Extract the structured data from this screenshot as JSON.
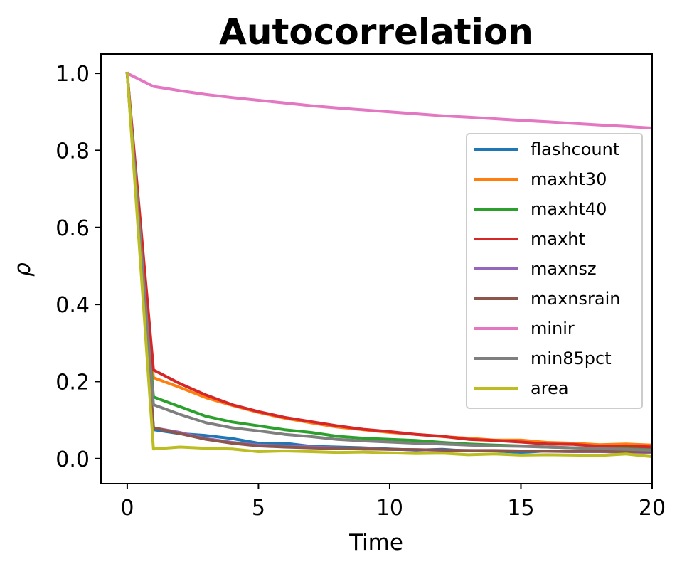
{
  "chart_data": {
    "type": "line",
    "title": "Autocorrelation",
    "xlabel": "Time",
    "ylabel": "ρ",
    "xlim": [
      -1,
      20
    ],
    "ylim": [
      -0.065,
      1.05
    ],
    "xticks": [
      0,
      5,
      10,
      15,
      20
    ],
    "xtick_labels": [
      "0",
      "5",
      "10",
      "15",
      "20"
    ],
    "yticks": [
      0.0,
      0.2,
      0.4,
      0.6,
      0.8,
      1.0
    ],
    "ytick_labels": [
      "0.0",
      "0.2",
      "0.4",
      "0.6",
      "0.8",
      "1.0"
    ],
    "grid": false,
    "legend_position": "center-right",
    "x": [
      0,
      1,
      2,
      3,
      4,
      5,
      6,
      7,
      8,
      9,
      10,
      11,
      12,
      13,
      14,
      15,
      16,
      17,
      18,
      19,
      20
    ],
    "series": [
      {
        "name": "flashcount",
        "color": "#1f77b4",
        "values": [
          1.0,
          0.075,
          0.065,
          0.06,
          0.052,
          0.04,
          0.04,
          0.032,
          0.03,
          0.028,
          0.025,
          0.022,
          0.024,
          0.02,
          0.02,
          0.016,
          0.02,
          0.018,
          0.018,
          0.02,
          0.015
        ]
      },
      {
        "name": "maxht30",
        "color": "#ff7f0e",
        "values": [
          1.0,
          0.21,
          0.185,
          0.158,
          0.138,
          0.12,
          0.105,
          0.093,
          0.082,
          0.075,
          0.068,
          0.063,
          0.057,
          0.053,
          0.048,
          0.048,
          0.042,
          0.04,
          0.036,
          0.038,
          0.035
        ]
      },
      {
        "name": "maxht40",
        "color": "#2ca02c",
        "values": [
          1.0,
          0.16,
          0.135,
          0.11,
          0.095,
          0.085,
          0.075,
          0.068,
          0.058,
          0.053,
          0.05,
          0.047,
          0.042,
          0.038,
          0.035,
          0.033,
          0.03,
          0.028,
          0.027,
          0.028,
          0.025
        ]
      },
      {
        "name": "maxht",
        "color": "#d62728",
        "values": [
          1.0,
          0.23,
          0.195,
          0.165,
          0.14,
          0.122,
          0.107,
          0.096,
          0.085,
          0.076,
          0.07,
          0.063,
          0.058,
          0.05,
          0.047,
          0.043,
          0.038,
          0.037,
          0.032,
          0.033,
          0.03
        ]
      },
      {
        "name": "maxnsz",
        "color": "#9467bd",
        "values": [
          1.0,
          0.08,
          0.068,
          0.052,
          0.042,
          0.035,
          0.033,
          0.03,
          0.028,
          0.026,
          0.024,
          0.023,
          0.022,
          0.021,
          0.02,
          0.02,
          0.019,
          0.018,
          0.018,
          0.017,
          0.016
        ]
      },
      {
        "name": "maxnsrain",
        "color": "#8c564b",
        "values": [
          1.0,
          0.08,
          0.065,
          0.05,
          0.04,
          0.033,
          0.03,
          0.028,
          0.026,
          0.025,
          0.024,
          0.023,
          0.022,
          0.021,
          0.021,
          0.02,
          0.02,
          0.019,
          0.019,
          0.018,
          0.018
        ]
      },
      {
        "name": "minir",
        "color": "#e377c2",
        "values": [
          1.0,
          0.966,
          0.955,
          0.945,
          0.937,
          0.93,
          0.923,
          0.916,
          0.91,
          0.905,
          0.9,
          0.895,
          0.89,
          0.886,
          0.882,
          0.878,
          0.874,
          0.87,
          0.866,
          0.862,
          0.858
        ]
      },
      {
        "name": "min85pct",
        "color": "#7f7f7f",
        "values": [
          1.0,
          0.14,
          0.115,
          0.093,
          0.08,
          0.072,
          0.063,
          0.057,
          0.05,
          0.046,
          0.043,
          0.04,
          0.038,
          0.035,
          0.033,
          0.032,
          0.03,
          0.028,
          0.026,
          0.024,
          0.022
        ]
      },
      {
        "name": "area",
        "color": "#bcbd22",
        "values": [
          1.0,
          0.025,
          0.03,
          0.027,
          0.025,
          0.018,
          0.02,
          0.018,
          0.016,
          0.017,
          0.015,
          0.013,
          0.014,
          0.01,
          0.012,
          0.009,
          0.01,
          0.009,
          0.008,
          0.012,
          0.005
        ]
      }
    ]
  }
}
